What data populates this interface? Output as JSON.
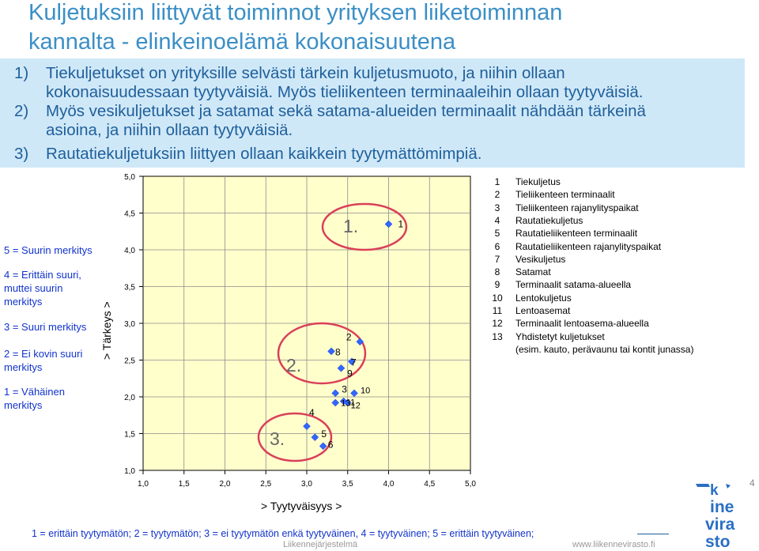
{
  "title_line1": "Kuljetuksiin liittyvät toiminnot yrityksen liiketoiminnan",
  "title_line2": "kannalta  - elinkeinoelämä kokonaisuutena",
  "points": [
    {
      "num": "1)",
      "lines": [
        "Tiekuljetukset on yrityksille selvästi tärkein kuljetusmuoto, ja niihin ollaan",
        "kokonaisuudessaan tyytyväisiä. Myös tieliikenteen terminaaleihin ollaan tyytyväisiä."
      ]
    },
    {
      "num": "2)",
      "lines": [
        "Myös vesikuljetukset ja satamat sekä satama-alueiden terminaalit nähdään tärkeinä",
        "asioina, ja niihin ollaan tyytyväisiä."
      ]
    },
    {
      "num": "3)",
      "lines": [
        "Rautatiekuljetuksiin liittyen ollaan kaikkein tyytymättömimpiä."
      ]
    }
  ],
  "importance_levels": [
    {
      "lines": [
        "5 = Suurin merkitys"
      ]
    },
    {
      "lines": [
        "4 = Erittäin suuri,",
        "muttei suurin",
        "merkitys"
      ]
    },
    {
      "lines": [
        "3 = Suuri merkitys"
      ]
    },
    {
      "lines": [
        "2 = Ei kovin suuri",
        "merkitys"
      ]
    },
    {
      "lines": [
        "1 = Vähäinen",
        "merkitys"
      ]
    }
  ],
  "chart_data": {
    "type": "scatter",
    "xlabel": "> Tyytyväisyys >",
    "ylabel": "> Tärkeys >",
    "xlim": [
      1.0,
      5.0
    ],
    "ylim": [
      1.0,
      5.0
    ],
    "x_ticks": [
      "1,0",
      "1,5",
      "2,0",
      "2,5",
      "3,0",
      "3,5",
      "4,0",
      "4,5",
      "5,0"
    ],
    "y_ticks": [
      "1,0",
      "1,5",
      "2,0",
      "2,5",
      "3,0",
      "3,5",
      "4,0",
      "4,5",
      "5,0"
    ],
    "grid": true,
    "plot_background": "#ffffcc",
    "marker_color": "#3366ff",
    "points": [
      {
        "label": "1",
        "x": 4.0,
        "y": 4.35
      },
      {
        "label": "2",
        "x": 3.65,
        "y": 2.75
      },
      {
        "label": "3",
        "x": 3.35,
        "y": 2.05
      },
      {
        "label": "4",
        "x": 3.0,
        "y": 1.6
      },
      {
        "label": "5",
        "x": 3.1,
        "y": 1.45
      },
      {
        "label": "6",
        "x": 3.2,
        "y": 1.33
      },
      {
        "label": "7",
        "x": 3.55,
        "y": 2.48
      },
      {
        "label": "8",
        "x": 3.3,
        "y": 2.62
      },
      {
        "label": "9",
        "x": 3.42,
        "y": 2.39
      },
      {
        "label": "10",
        "x": 3.58,
        "y": 2.05
      },
      {
        "label": "11",
        "x": 3.45,
        "y": 1.94
      },
      {
        "label": "12",
        "x": 3.5,
        "y": 1.92
      },
      {
        "label": "13",
        "x": 3.35,
        "y": 1.92
      }
    ],
    "groups": [
      {
        "label": "1.",
        "color": "#d9405a"
      },
      {
        "label": "2.",
        "color": "#d9405a"
      },
      {
        "label": "3.",
        "color": "#d9405a"
      }
    ]
  },
  "legend": [
    {
      "num": "1",
      "text": "Tiekuljetus"
    },
    {
      "num": "2",
      "text": "Tieliikenteen terminaalit"
    },
    {
      "num": "3",
      "text": "Tieliikenteen rajanylityspaikat"
    },
    {
      "num": "4",
      "text": "Rautatiekuljetus"
    },
    {
      "num": "5",
      "text": "Rautatieliikenteen terminaalit"
    },
    {
      "num": "6",
      "text": "Rautatieliikenteen rajanylityspaikat"
    },
    {
      "num": "7",
      "text": "Vesikuljetus"
    },
    {
      "num": "8",
      "text": "Satamat"
    },
    {
      "num": "9",
      "text": "Terminaalit satama-alueella"
    },
    {
      "num": "10",
      "text": "Lentokuljetus"
    },
    {
      "num": "11",
      "text": "Lentoasemat"
    },
    {
      "num": "12",
      "text": "Terminaalit lentoasema-alueella"
    },
    {
      "num": "13",
      "text": "Yhdistetyt kuljetukset"
    },
    {
      "num": "",
      "text": "(esim. kauto, perävaunu tai kontit junassa)"
    }
  ],
  "footer": "1 = erittäin tyytymätön; 2 = tyytymätön; 3 = ei tyytymätön enkä tyytyväinen, 4 = tyytyväinen; 5 = erittäin tyytyväinen;",
  "page_number": "4",
  "footer_org": "Liikennejärjestelmä",
  "footer_url": "www.liikennevirasto.fi",
  "logo_text": [
    "k",
    "ine",
    "vira",
    "sto"
  ],
  "colors": {
    "title": "#3b8fc6",
    "box": "#cfe8f8",
    "body_text": "#1f5f9a",
    "accent_text": "#1133cc",
    "logo": "#2a6fc4"
  }
}
